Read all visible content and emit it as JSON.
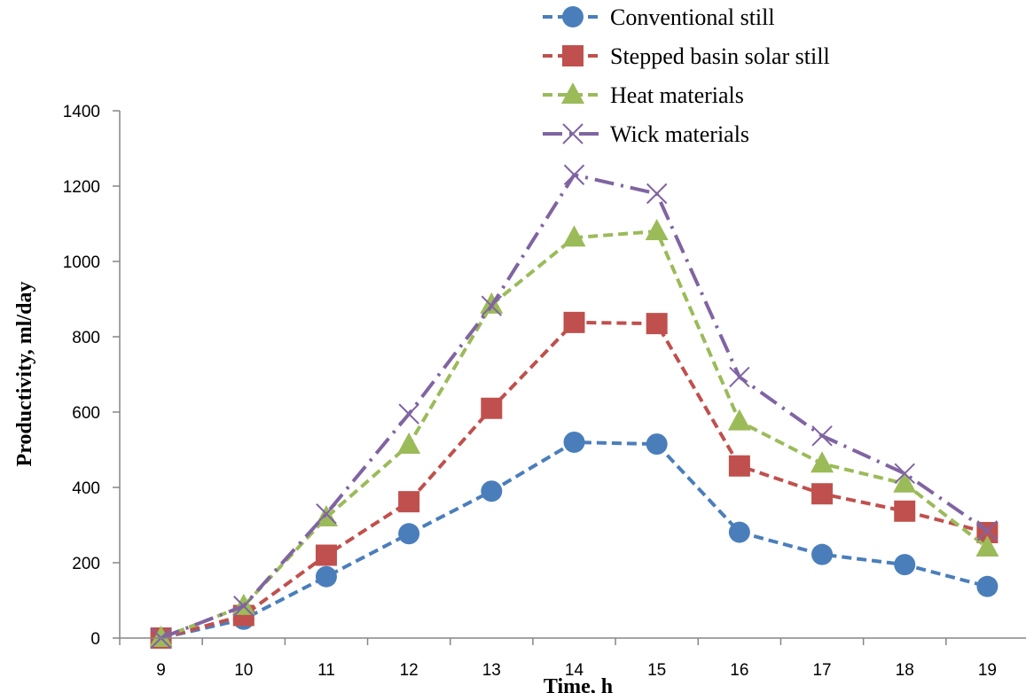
{
  "chart_data": {
    "type": "line",
    "xlabel": "Time, h",
    "ylabel": "Productivity, ml/day",
    "x": [
      9,
      10,
      11,
      12,
      13,
      14,
      15,
      16,
      17,
      18,
      19
    ],
    "ylim": [
      0,
      1400
    ],
    "yticks": [
      0,
      200,
      400,
      600,
      800,
      1000,
      1200,
      1400
    ],
    "grid": false,
    "legend_position": "top-right",
    "series": [
      {
        "name": "Conventional still",
        "values": [
          0,
          50,
          163,
          277,
          390,
          520,
          515,
          281,
          222,
          195,
          137
        ],
        "color": "#4A7EBB",
        "marker": "circle",
        "dash": "dashed"
      },
      {
        "name": "Stepped basin solar still",
        "values": [
          0,
          60,
          220,
          362,
          610,
          838,
          835,
          457,
          383,
          337,
          280
        ],
        "color": "#C0504D",
        "marker": "square",
        "dash": "dashed"
      },
      {
        "name": "Heat materials",
        "values": [
          0,
          85,
          320,
          513,
          885,
          1063,
          1080,
          575,
          463,
          410,
          240
        ],
        "color": "#9BBB59",
        "marker": "triangle",
        "dash": "dashed"
      },
      {
        "name": "Wick materials",
        "values": [
          0,
          85,
          330,
          595,
          882,
          1230,
          1180,
          693,
          537,
          437,
          285
        ],
        "color": "#8064A2",
        "marker": "x",
        "dash": "dash-dot"
      }
    ]
  }
}
